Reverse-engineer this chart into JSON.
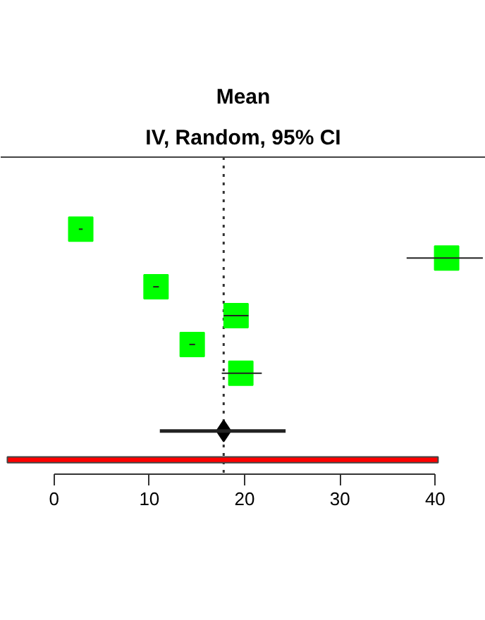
{
  "chart_data": {
    "type": "scatter",
    "orientation": "horizontal",
    "title": "Mean",
    "subtitle": "IV, Random, 95% CI",
    "categories": [
      null,
      null,
      null,
      null,
      null,
      null,
      null,
      null,
      null,
      null,
      null
    ],
    "series": [
      {
        "marker": "square",
        "color": "#00ff00",
        "values": [
          null,
          null,
          2.8,
          41.2,
          10.7,
          19.1,
          14.5,
          19.6,
          null,
          null,
          null
        ],
        "errors": [
          null,
          null,
          [
            2.6,
            3.0
          ],
          [
            37.0,
            45.0
          ],
          [
            10.4,
            11.0
          ],
          [
            17.8,
            20.4
          ],
          [
            14.2,
            14.8
          ],
          [
            17.6,
            21.8
          ],
          null,
          null,
          null
        ]
      },
      {
        "type": "scatter",
        "marker": "diamond",
        "color": "#000000",
        "values": [
          null,
          null,
          null,
          null,
          null,
          null,
          null,
          null,
          null,
          17.8,
          null
        ],
        "errors": [
          null,
          null,
          null,
          null,
          null,
          null,
          null,
          null,
          null,
          [
            11.1,
            24.3
          ],
          null
        ]
      },
      {
        "type": "bar",
        "color": "#ff0000",
        "values": [
          null,
          null,
          null,
          null,
          null,
          null,
          null,
          null,
          null,
          null,
          45.2
        ],
        "base": [
          null,
          null,
          null,
          null,
          null,
          null,
          null,
          null,
          null,
          null,
          -4.9
        ]
      }
    ],
    "ref_lines": [
      {
        "axis": "x",
        "value": 17.8,
        "line_style": "dotted",
        "color": "#333333"
      }
    ],
    "xlim": [
      -5.6,
      45.3
    ],
    "xticks": [
      0,
      10,
      20,
      30,
      40
    ],
    "tick_labels": "x",
    "grid": false
  }
}
